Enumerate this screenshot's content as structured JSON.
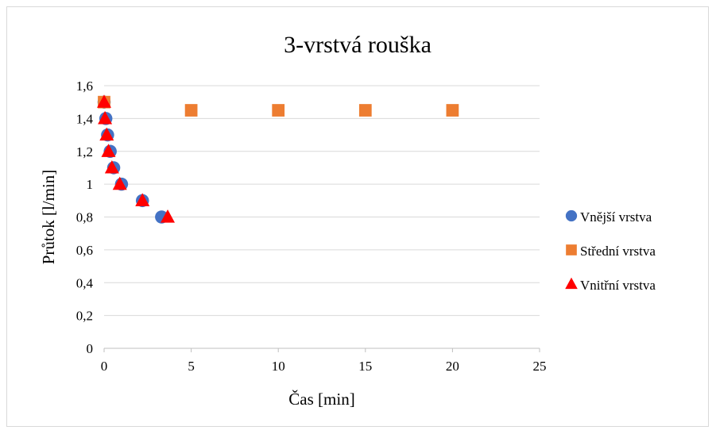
{
  "chart_data": {
    "type": "scatter",
    "title": "3-vrstvá rouška",
    "xlabel": "Čas [min]",
    "ylabel": "Průtok [l/min]",
    "xlim": [
      0,
      25
    ],
    "ylim": [
      0,
      1.6
    ],
    "x_ticks": [
      0,
      5,
      10,
      15,
      20,
      25
    ],
    "x_tick_labels": [
      "0",
      "5",
      "10",
      "15",
      "20",
      "25"
    ],
    "y_ticks": [
      0,
      0.2,
      0.4,
      0.6,
      0.8,
      1.0,
      1.2,
      1.4,
      1.6
    ],
    "y_tick_labels": [
      "0",
      "0,2",
      "0,4",
      "0,6",
      "0,8",
      "1",
      "1,2",
      "1,4",
      "1,6"
    ],
    "grid": "horizontal",
    "legend_position": "right",
    "series": [
      {
        "name": "Vnější vrstva",
        "marker": "circle",
        "color": "#4472C4",
        "points": [
          {
            "x": 0.0,
            "y": 1.5
          },
          {
            "x": 0.1,
            "y": 1.4
          },
          {
            "x": 0.2,
            "y": 1.3
          },
          {
            "x": 0.35,
            "y": 1.2
          },
          {
            "x": 0.55,
            "y": 1.1
          },
          {
            "x": 1.0,
            "y": 1.0
          },
          {
            "x": 2.2,
            "y": 0.9
          },
          {
            "x": 3.3,
            "y": 0.8
          }
        ]
      },
      {
        "name": "Střední vrstva",
        "marker": "square",
        "color": "#ED7D31",
        "points": [
          {
            "x": 0.0,
            "y": 1.5
          },
          {
            "x": 5.0,
            "y": 1.45
          },
          {
            "x": 10.0,
            "y": 1.45
          },
          {
            "x": 15.0,
            "y": 1.45
          },
          {
            "x": 20.0,
            "y": 1.45
          }
        ]
      },
      {
        "name": "Vnitřní vrstva",
        "marker": "triangle",
        "color": "#FF0000",
        "points": [
          {
            "x": 0.0,
            "y": 1.5
          },
          {
            "x": 0.05,
            "y": 1.4
          },
          {
            "x": 0.15,
            "y": 1.3
          },
          {
            "x": 0.25,
            "y": 1.2
          },
          {
            "x": 0.45,
            "y": 1.1
          },
          {
            "x": 0.9,
            "y": 1.0
          },
          {
            "x": 2.2,
            "y": 0.9
          },
          {
            "x": 3.65,
            "y": 0.8
          }
        ]
      }
    ]
  }
}
